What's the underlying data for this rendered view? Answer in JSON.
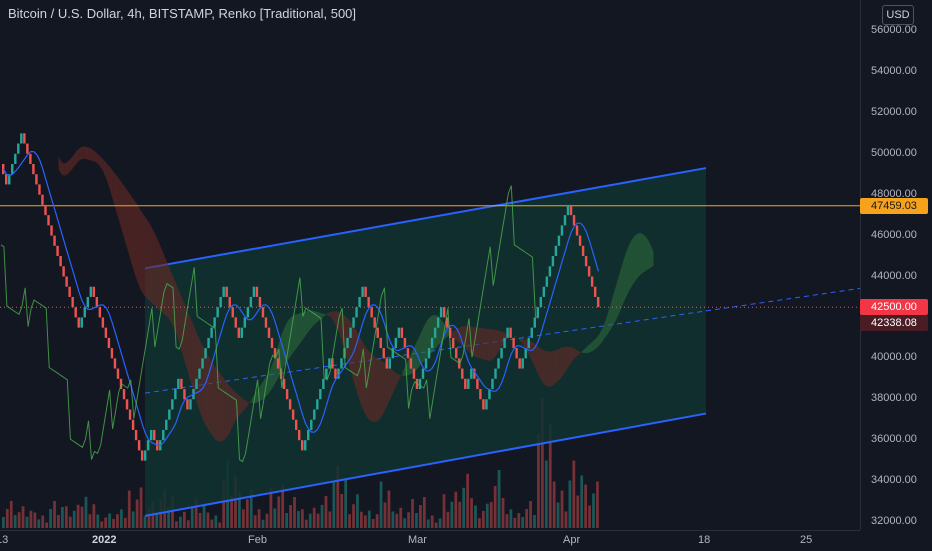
{
  "header": {
    "title": "Bitcoin / U.S. Dollar, 4h, BITSTAMP, Renko [Traditional, 500]",
    "currency_button": "USD"
  },
  "colors": {
    "background": "#131722",
    "brick_up": "#26a69a",
    "brick_down": "#ef5350",
    "channel_line": "#2962ff",
    "channel_fill": "#10322f",
    "horizontal_line": "#f7a21b",
    "current_price_badge": "#f23645",
    "last_close_badge": "#4a1d25",
    "cloud_bull": "#2e6b3a",
    "cloud_bear": "#6b2a25",
    "ma_line": "#2962ff",
    "lagging_line": "#4caf50"
  },
  "chart_data": {
    "type": "renko",
    "symbol": "BTCUSD",
    "exchange": "BITSTAMP",
    "timeframe": "4h",
    "brick_size": 500,
    "ylim": [
      32000,
      56000
    ],
    "y_ticks": [
      "56000.00",
      "54000.00",
      "52000.00",
      "50000.00",
      "48000.00",
      "46000.00",
      "44000.00",
      "40000.00",
      "38000.00",
      "36000.00",
      "34000.00",
      "32000.00"
    ],
    "x_ticks": [
      {
        "label": "13",
        "bold": false
      },
      {
        "label": "2022",
        "bold": true
      },
      {
        "label": "Feb",
        "bold": false
      },
      {
        "label": "Mar",
        "bold": false
      },
      {
        "label": "Apr",
        "bold": false
      },
      {
        "label": "18",
        "bold": false
      },
      {
        "label": "25",
        "bold": false
      }
    ],
    "price_path": [
      49500,
      48500,
      50000,
      51000,
      45000,
      41500,
      43500,
      39500,
      35000,
      36500,
      35500,
      39000,
      37500,
      42500,
      43500,
      41000,
      43500,
      40500,
      38000,
      35500,
      40000,
      39000,
      43500,
      41000,
      39500,
      41500,
      38500,
      40500,
      42500,
      38500,
      39500,
      37500,
      41500,
      39500,
      47500,
      45000,
      44000,
      42500
    ],
    "horizontal_line": {
      "price": 47459.03,
      "label": "47459.03"
    },
    "current_price": {
      "price": 42500.0,
      "label": "42500.00"
    },
    "last_close": {
      "price": 42338.08,
      "label": "42338.08"
    },
    "regression_channel": {
      "upper": [
        [
          0.0,
          44400
        ],
        [
          1.0,
          49300
        ]
      ],
      "middle": [
        [
          0.0,
          38300
        ],
        [
          1.0,
          43300
        ]
      ],
      "lower": [
        [
          0.0,
          32300
        ],
        [
          1.0,
          37300
        ]
      ]
    },
    "volume": [
      0.2,
      0.15,
      0.1,
      0.2,
      0.15,
      0.25,
      0.1,
      0.12,
      0.3,
      0.18,
      0.25,
      0.12,
      0.2,
      0.1,
      0.5,
      0.25,
      0.15,
      0.3,
      0.2,
      0.15,
      0.22,
      0.4,
      0.25,
      0.12,
      0.3,
      0.15,
      0.2,
      0.1,
      0.25,
      0.35,
      0.18,
      0.4,
      0.12,
      0.2,
      0.9,
      0.3,
      0.5,
      0.3
    ]
  }
}
